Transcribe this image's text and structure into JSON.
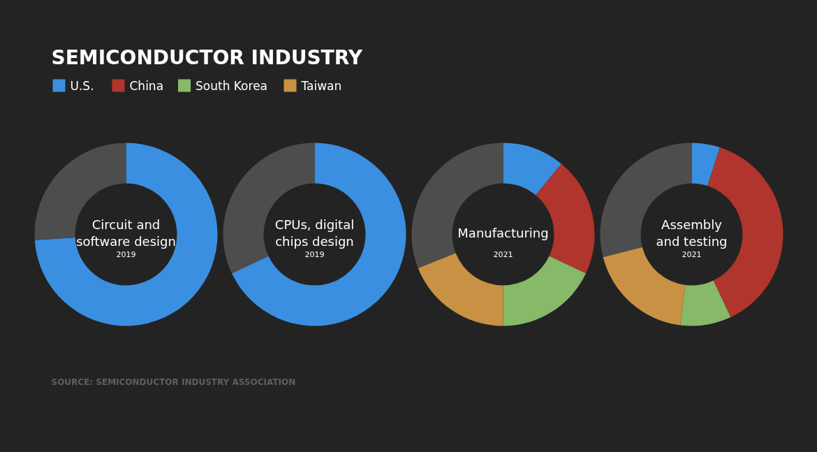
{
  "chart_data": [
    {
      "type": "other",
      "title": "SEMICONDUCTOR INDUSTRY",
      "annotations": [
        "SOURCE: SEMICONDUCTOR INDUSTRY ASSOCIATION"
      ]
    },
    {
      "type": "donut",
      "title": "Circuit and\nsoftware design",
      "subtitle": "2019",
      "legend": "top right",
      "categories": [
        "U.S.",
        "China",
        "South Korea",
        "Taiwan",
        null
      ],
      "values": [
        74,
        0,
        0,
        0,
        26
      ],
      "colors": [
        "#3b8fe0",
        "#b0352c",
        "#86b968",
        "#c99143",
        "#4d4d4d"
      ]
    },
    {
      "type": "donut",
      "title": "CPUs, digital\nchips design",
      "subtitle": "2019",
      "categories": [
        null,
        null,
        null,
        null,
        null
      ],
      "values": [
        68,
        0,
        0,
        0,
        32
      ],
      "colors": [
        "#3b8fe0",
        "#b0352c",
        "#86b968",
        "#c99143",
        "#4d4d4d"
      ]
    },
    {
      "type": "donut",
      "title": "Manufacturing",
      "subtitle": "2021",
      "categories": [
        null,
        null,
        null,
        null,
        null
      ],
      "values": [
        11,
        21,
        18,
        19,
        31
      ],
      "colors": [
        "#3b8fe0",
        "#b0352c",
        "#86b968",
        "#c99143",
        "#4d4d4d"
      ]
    },
    {
      "type": "donut",
      "title": "Assembly\nand testing",
      "subtitle": "2021",
      "categories": [
        null,
        null,
        null,
        null,
        null
      ],
      "values": [
        5,
        38,
        9,
        19,
        29
      ],
      "colors": [
        "#3b8fe0",
        "#b0352c",
        "#86b968",
        "#c99143",
        "#4d4d4d"
      ]
    }
  ]
}
